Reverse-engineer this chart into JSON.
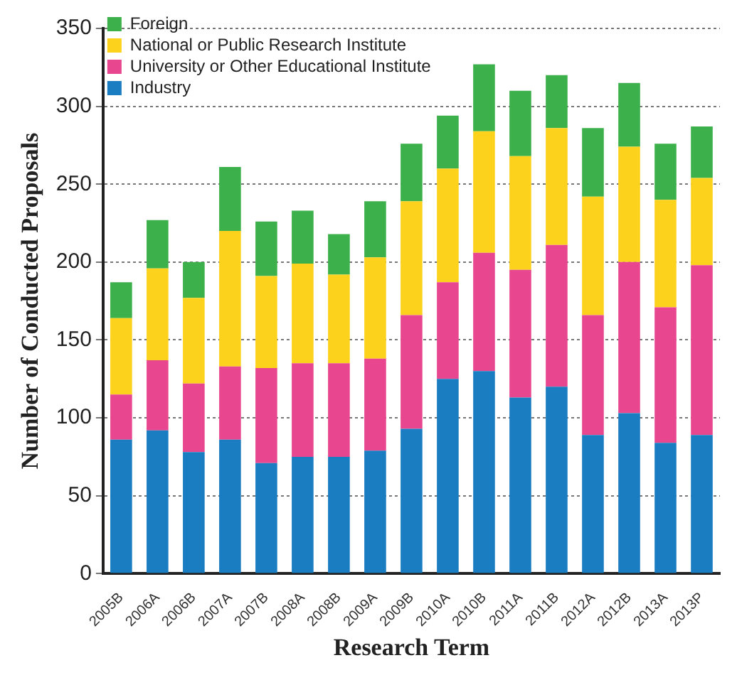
{
  "chart_data": {
    "type": "bar",
    "stacked": true,
    "xlabel": "Research Term",
    "ylabel": "Number of Conducted Proposals",
    "categories": [
      "2005B",
      "2006A",
      "2006B",
      "2007A",
      "2007B",
      "2008A",
      "2008B",
      "2009A",
      "2009B",
      "2010A",
      "2010B",
      "2011A",
      "2011B",
      "2012A",
      "2012B",
      "2013A",
      "2013P"
    ],
    "series": [
      {
        "name": "Industry",
        "color": "#1a7cc1",
        "values": [
          86,
          92,
          78,
          86,
          71,
          75,
          75,
          79,
          93,
          125,
          130,
          113,
          120,
          89,
          103,
          84,
          89
        ]
      },
      {
        "name": "University or Other Educational Institute",
        "color": "#e8478f",
        "values": [
          29,
          45,
          44,
          47,
          61,
          60,
          60,
          59,
          73,
          62,
          76,
          82,
          91,
          77,
          97,
          87,
          109
        ]
      },
      {
        "name": "National or Public Research Institute",
        "color": "#fdd21c",
        "values": [
          49,
          59,
          55,
          87,
          59,
          64,
          57,
          65,
          73,
          73,
          78,
          73,
          75,
          76,
          74,
          69,
          56
        ]
      },
      {
        "name": "Foreign",
        "color": "#3cb04a",
        "values": [
          23,
          31,
          23,
          41,
          35,
          34,
          26,
          36,
          37,
          34,
          43,
          42,
          34,
          44,
          41,
          36,
          33
        ]
      }
    ],
    "ylim": [
      0,
      350
    ],
    "yticks": [
      0,
      50,
      100,
      150,
      200,
      250,
      300,
      350
    ],
    "grid": "y",
    "legend": "top left"
  }
}
